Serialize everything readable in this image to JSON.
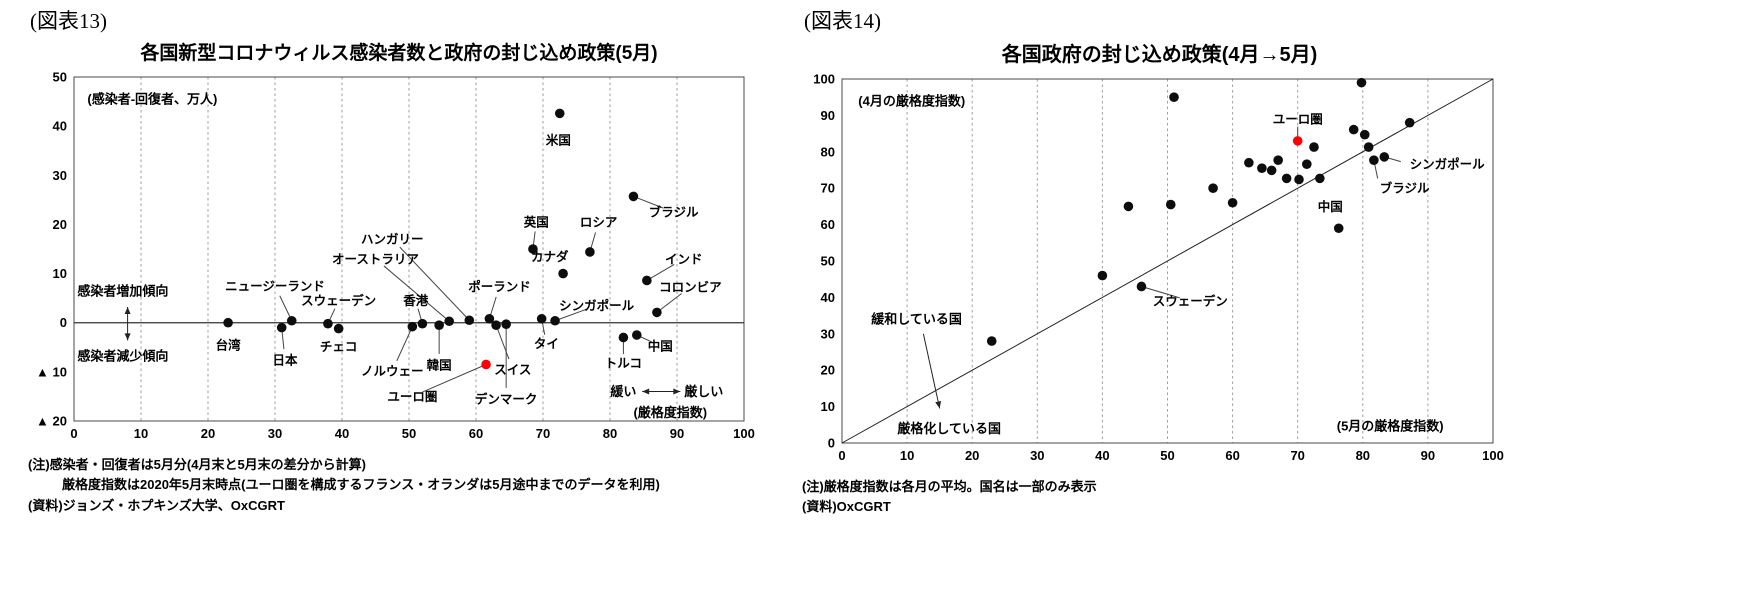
{
  "figure13": {
    "tag": "(図表13)",
    "title": "各国新型コロナウィルス感染者数と政府の封じ込め政策(5月)",
    "notes": [
      "(注)感染者・回復者は5月分(4月末と5月末の差分から計算)",
      "厳格度指数は2020年5月末時点(ユーロ圏を構成するフランス・オランダは5月途中までのデータを利用)",
      "(資料)ジョンズ・ホプキンズ大学、OxCGRT"
    ]
  },
  "figure14": {
    "tag": "(図表14)",
    "title": "各国政府の封じ込め政策(4月→5月)",
    "notes": [
      "(注)厳格度指数は各月の平均。国名は一部のみ表示",
      "(資料)OxCGRT"
    ]
  },
  "chart_data": [
    {
      "id": "fig13",
      "type": "scatter",
      "title": "各国新型コロナウィルス感染者数と政府の封じ込め政策(5月)",
      "xlabel": "(厳格度指数)",
      "ylabel": "(感染者-回復者、万人)",
      "xlim": [
        0,
        100
      ],
      "ylim": [
        -20,
        50
      ],
      "xticks": [
        0,
        10,
        20,
        30,
        40,
        50,
        60,
        70,
        80,
        90,
        100
      ],
      "yticks": [
        {
          "v": 50,
          "label": "50"
        },
        {
          "v": 40,
          "label": "40"
        },
        {
          "v": 30,
          "label": "30"
        },
        {
          "v": 20,
          "label": "20"
        },
        {
          "v": 10,
          "label": "10"
        },
        {
          "v": 0,
          "label": "0"
        },
        {
          "v": -10,
          "label": "▲ 10"
        },
        {
          "v": -20,
          "label": "▲ 20"
        }
      ],
      "zero_line": 0,
      "grid": "vertical-dashed",
      "accent": "#ff0000",
      "points": [
        {
          "label": "台湾",
          "x": 23,
          "y": 0,
          "lx": 23,
          "ly": -4.5
        },
        {
          "label": "日本",
          "x": 31,
          "y": -1,
          "lx": 31.5,
          "ly": -7.6,
          "leader": true
        },
        {
          "label": "ニュージーランド",
          "x": 32.5,
          "y": 0.4,
          "lx": 30,
          "ly": 7.5,
          "leader": true
        },
        {
          "label": "スウェーデン",
          "x": 37.9,
          "y": -0.2,
          "lx": 39.5,
          "ly": 4.5,
          "leader": true
        },
        {
          "label": "チェコ",
          "x": 39.5,
          "y": -1.2,
          "lx": 39.5,
          "ly": -4.8
        },
        {
          "label": "ノルウェー",
          "x": 50.5,
          "y": -0.8,
          "lx": 47.5,
          "ly": -9.8,
          "leader": true
        },
        {
          "label": "香港",
          "x": 52,
          "y": -0.2,
          "lx": 51,
          "ly": 4.5,
          "leader": true
        },
        {
          "label": "韓国",
          "x": 54.5,
          "y": -0.5,
          "lx": 54.5,
          "ly": -8.6,
          "leader": true
        },
        {
          "label": "オーストラリア",
          "x": 56,
          "y": 0.3,
          "lx": 45,
          "ly": 13,
          "leader": true
        },
        {
          "label": "ハンガリー",
          "x": 59,
          "y": 0.5,
          "lx": 47.5,
          "ly": 17,
          "leader": true
        },
        {
          "label": "ポーランド",
          "x": 62,
          "y": 0.8,
          "lx": 63.5,
          "ly": 7.4,
          "leader": true
        },
        {
          "label": "スイス",
          "x": 63,
          "y": -0.5,
          "lx": 65.5,
          "ly": -9.5,
          "leader": true
        },
        {
          "label": "ユーロ圏",
          "x": 61.5,
          "y": -8.5,
          "lx": 50.5,
          "ly": -15,
          "leader": true,
          "red": true
        },
        {
          "label": "デンマーク",
          "x": 64.5,
          "y": -0.3,
          "lx": 64.5,
          "ly": -15.5,
          "leader": true
        },
        {
          "label": "タイ",
          "x": 69.8,
          "y": 0.8,
          "lx": 70.5,
          "ly": -4.2,
          "leader": true
        },
        {
          "label": "シンガポール",
          "x": 71.8,
          "y": 0.4,
          "lx": 78,
          "ly": 3.5,
          "leader": true
        },
        {
          "label": "英国",
          "x": 68.5,
          "y": 15,
          "lx": 69,
          "ly": 20.5,
          "leader": true
        },
        {
          "label": "カナダ",
          "x": 73,
          "y": 10,
          "lx": 71,
          "ly": 13.5
        },
        {
          "label": "ロシア",
          "x": 77,
          "y": 14.4,
          "lx": 78.3,
          "ly": 20.5,
          "leader": true
        },
        {
          "label": "米国",
          "x": 72.5,
          "y": 42.6,
          "lx": 72.3,
          "ly": 37.2
        },
        {
          "label": "トルコ",
          "x": 82,
          "y": -3,
          "lx": 82,
          "ly": -8.2,
          "leader": true
        },
        {
          "label": "中国",
          "x": 84,
          "y": -2.5,
          "lx": 87.5,
          "ly": -4.7,
          "leader": true
        },
        {
          "label": "ブラジル",
          "x": 83.5,
          "y": 25.7,
          "lx": 89.5,
          "ly": 22.5,
          "leader": true
        },
        {
          "label": "インド",
          "x": 85.5,
          "y": 8.6,
          "lx": 91,
          "ly": 13,
          "leader": true
        },
        {
          "label": "コロンビア",
          "x": 87,
          "y": 2.1,
          "lx": 92,
          "ly": 7.3,
          "leader": true
        }
      ],
      "annotations": [
        {
          "t": "text",
          "x": 2,
          "y": 45.5,
          "text": "(感染者-回復者、万人)",
          "anchor": "start",
          "name": "y-axis-unit-label"
        },
        {
          "t": "text",
          "x": 0.5,
          "y": 6.5,
          "text": "感染者増加傾向",
          "anchor": "start",
          "name": "infection-increase-label"
        },
        {
          "t": "text",
          "x": 0.5,
          "y": -6.8,
          "text": "感染者減少傾向",
          "anchor": "start",
          "name": "infection-decrease-label"
        },
        {
          "t": "arrow",
          "x1": 8,
          "y1": 3.2,
          "x2": 8,
          "y2": -3.6,
          "double": true
        },
        {
          "t": "text",
          "x": 82,
          "y": -14,
          "text": "緩い",
          "anchor": "middle",
          "name": "loose-label"
        },
        {
          "t": "arrow",
          "x1": 84.8,
          "y1": -14,
          "x2": 90.5,
          "y2": -14,
          "double": true
        },
        {
          "t": "text",
          "x": 94,
          "y": -14,
          "text": "厳しい",
          "anchor": "middle",
          "name": "strict-label"
        },
        {
          "t": "text",
          "x": 89,
          "y": -18.3,
          "text": "(厳格度指数)",
          "anchor": "middle",
          "name": "x-axis-unit-label"
        }
      ]
    },
    {
      "id": "fig14",
      "type": "scatter",
      "title": "各国政府の封じ込め政策(4月→5月)",
      "xlabel": "(5月の厳格度指数)",
      "ylabel": "(4月の厳格度指数)",
      "xlim": [
        0,
        100
      ],
      "ylim": [
        0,
        100
      ],
      "xticks": [
        0,
        10,
        20,
        30,
        40,
        50,
        60,
        70,
        80,
        90,
        100
      ],
      "yticks": [
        {
          "v": 0,
          "label": "0"
        },
        {
          "v": 10,
          "label": "10"
        },
        {
          "v": 20,
          "label": "20"
        },
        {
          "v": 30,
          "label": "30"
        },
        {
          "v": 40,
          "label": "40"
        },
        {
          "v": 50,
          "label": "50"
        },
        {
          "v": 60,
          "label": "60"
        },
        {
          "v": 70,
          "label": "70"
        },
        {
          "v": 80,
          "label": "80"
        },
        {
          "v": 90,
          "label": "90"
        },
        {
          "v": 100,
          "label": "100"
        }
      ],
      "diagonal": true,
      "grid": "vertical-dashed",
      "accent": "#ff0000",
      "points": [
        {
          "x": 23,
          "y": 28
        },
        {
          "x": 40,
          "y": 46
        },
        {
          "x": 44,
          "y": 65
        },
        {
          "label": "スウェーデン",
          "x": 46,
          "y": 43,
          "lx": 53.5,
          "ly": 39,
          "leader": true
        },
        {
          "x": 50.5,
          "y": 65.5
        },
        {
          "x": 51,
          "y": 95
        },
        {
          "x": 57,
          "y": 70
        },
        {
          "x": 60,
          "y": 66
        },
        {
          "x": 62.5,
          "y": 77
        },
        {
          "x": 64.5,
          "y": 75.5
        },
        {
          "x": 66,
          "y": 74.9
        },
        {
          "x": 67,
          "y": 77.7
        },
        {
          "x": 68.3,
          "y": 72.7
        },
        {
          "label": "ユーロ圏",
          "x": 70,
          "y": 83,
          "lx": 70,
          "ly": 89,
          "leader": true,
          "red": true
        },
        {
          "x": 70.2,
          "y": 72.4
        },
        {
          "x": 71.4,
          "y": 76.6
        },
        {
          "x": 72.5,
          "y": 81.3
        },
        {
          "x": 73.4,
          "y": 72.7
        },
        {
          "label": "中国",
          "x": 76.3,
          "y": 59,
          "lx": 75,
          "ly": 65
        },
        {
          "x": 78.6,
          "y": 86.1
        },
        {
          "x": 79.8,
          "y": 99
        },
        {
          "x": 80.3,
          "y": 84.7
        },
        {
          "x": 80.9,
          "y": 81.3
        },
        {
          "label": "ブラジル",
          "x": 81.7,
          "y": 77.7,
          "lx": 82.6,
          "ly": 70,
          "anchor": "start",
          "leader": true
        },
        {
          "label": "シンガポール",
          "x": 83.3,
          "y": 78.6,
          "lx": 87.2,
          "ly": 76.6,
          "anchor": "start",
          "leader": true
        },
        {
          "x": 87.2,
          "y": 88
        }
      ],
      "annotations": [
        {
          "t": "text",
          "x": 2.5,
          "y": 94,
          "text": "(4月の厳格度指数)",
          "anchor": "start",
          "name": "y-axis-unit-label"
        },
        {
          "t": "text",
          "x": 76,
          "y": 4.7,
          "text": "(5月の厳格度指数)",
          "anchor": "start",
          "name": "x-axis-unit-label"
        },
        {
          "t": "text",
          "x": 4.5,
          "y": 34,
          "text": "緩和している国",
          "anchor": "start",
          "name": "easing-countries-label"
        },
        {
          "t": "arrow",
          "x1": 12.5,
          "y1": 30,
          "x2": 15,
          "y2": 9.5,
          "double": false
        },
        {
          "t": "text",
          "x": 8.5,
          "y": 4,
          "text": "厳格化している国",
          "anchor": "start",
          "name": "tightening-countries-label"
        }
      ]
    }
  ]
}
